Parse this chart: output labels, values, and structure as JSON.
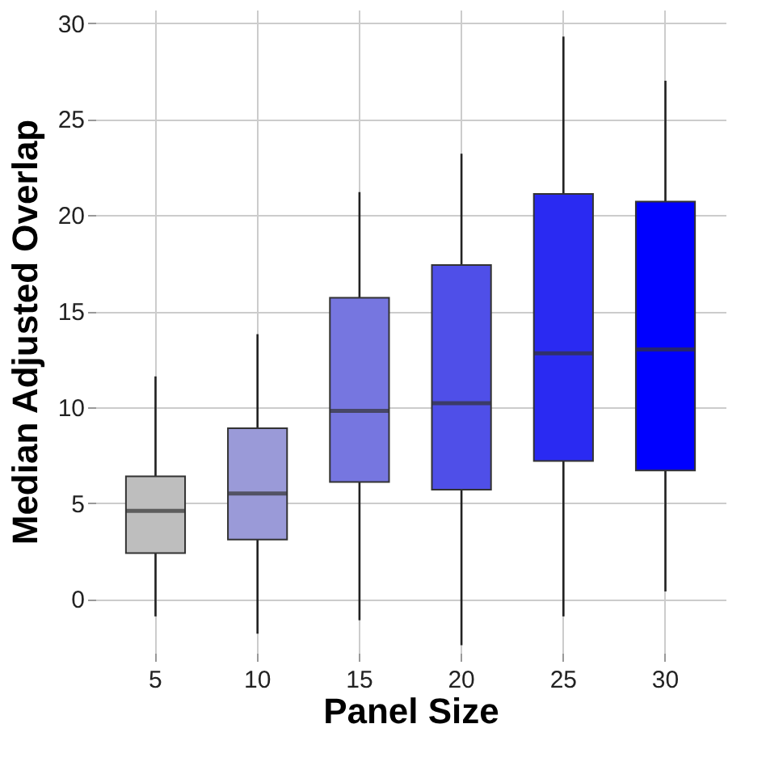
{
  "chart_data": {
    "type": "box",
    "xlabel": "Panel Size",
    "ylabel": "Median Adjusted Overlap",
    "categories": [
      "5",
      "10",
      "15",
      "20",
      "25",
      "30"
    ],
    "colors": [
      "#bebebe",
      "#9a9ad8",
      "#7676e0",
      "#4f4fe8",
      "#2a2af2",
      "#0000ff"
    ],
    "boxes": [
      {
        "low": -0.9,
        "q1": 2.4,
        "median": 4.6,
        "q3": 6.4,
        "high": 11.6
      },
      {
        "low": -1.8,
        "q1": 3.1,
        "median": 5.5,
        "q3": 8.9,
        "high": 13.8
      },
      {
        "low": -1.1,
        "q1": 6.1,
        "median": 9.8,
        "q3": 15.7,
        "high": 21.2
      },
      {
        "low": -2.4,
        "q1": 5.7,
        "median": 10.2,
        "q3": 17.4,
        "high": 23.2
      },
      {
        "low": -0.9,
        "q1": 7.2,
        "median": 12.8,
        "q3": 21.1,
        "high": 29.3
      },
      {
        "low": 0.4,
        "q1": 6.7,
        "median": 13.0,
        "q3": 20.7,
        "high": 27.0
      }
    ],
    "ylim": [
      -2.8,
      30.7
    ],
    "yticks": [
      0,
      5,
      10,
      15,
      20,
      25,
      30
    ],
    "grid": true
  }
}
